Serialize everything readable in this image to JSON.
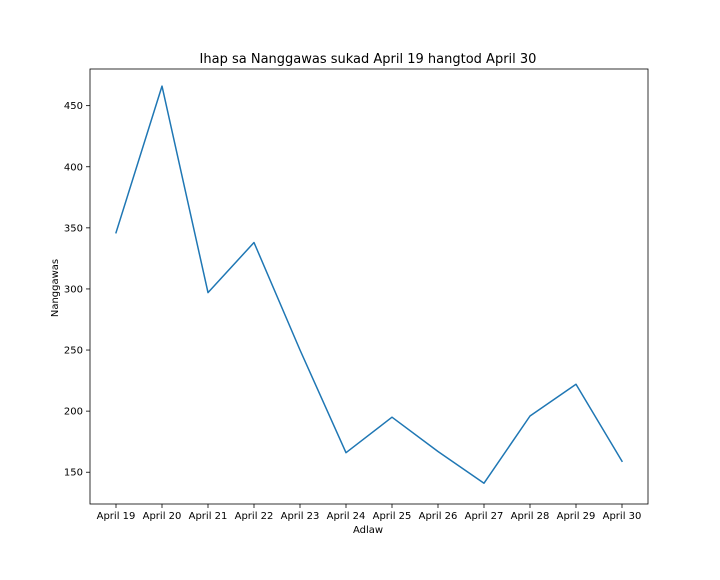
{
  "chart_data": {
    "type": "line",
    "title": "Ihap sa Nanggawas sukad April 19 hangtod April 30",
    "xlabel": "Adlaw",
    "ylabel": "Nanggawas",
    "categories": [
      "April 19",
      "April 20",
      "April 21",
      "April 22",
      "April 23",
      "April 24",
      "April 25",
      "April 26",
      "April 27",
      "April 28",
      "April 29",
      "April 30"
    ],
    "series": [
      {
        "values": [
          346,
          466,
          297,
          338,
          250,
          166,
          195,
          167,
          141,
          196,
          222,
          159
        ]
      }
    ],
    "ylim": [
      124,
      480
    ],
    "yticks": [
      150,
      200,
      250,
      300,
      350,
      400,
      450
    ],
    "grid": false,
    "line_color": "#1f77b4"
  }
}
